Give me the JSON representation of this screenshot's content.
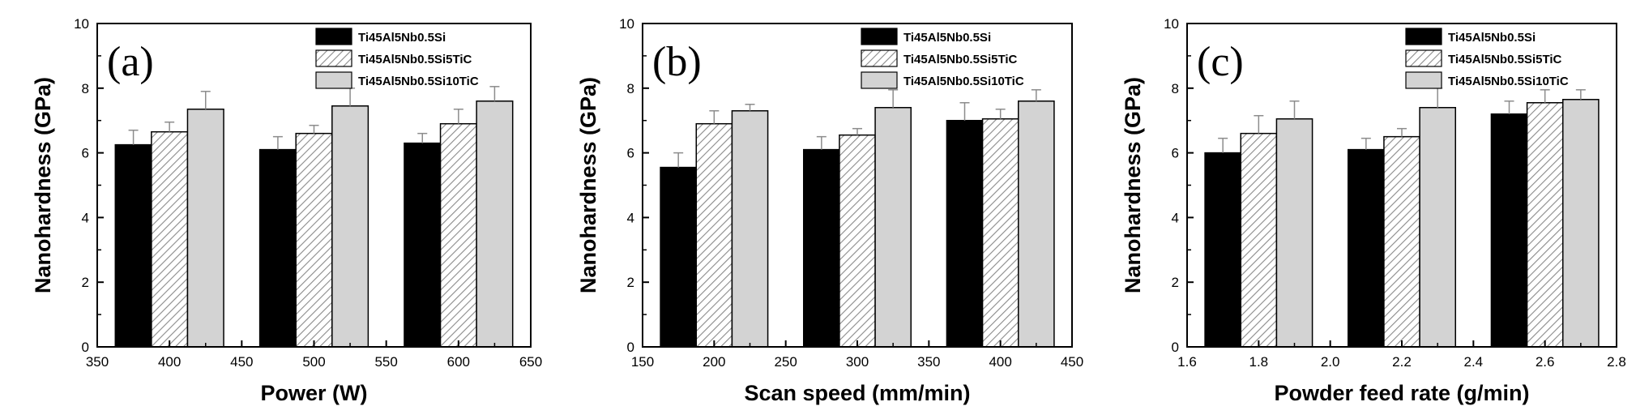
{
  "colors": {
    "axis": "#000000",
    "series_fills": [
      "#000000",
      "hatch",
      "#d3d3d3"
    ],
    "hatch_stroke": "#8a8a8a",
    "hatch_bg": "#ffffff",
    "error_bar": "#8c8c8c"
  },
  "chart_data": [
    {
      "type": "bar",
      "panel_label": "(a)",
      "xlabel": "Power (W)",
      "ylabel": "Nanohardness (GPa)",
      "xlim": [
        350,
        650
      ],
      "ylim": [
        0,
        10
      ],
      "xticks": [
        350,
        400,
        450,
        500,
        550,
        600,
        650
      ],
      "yticks": [
        0,
        2,
        4,
        6,
        8,
        10
      ],
      "xtick_labels": [
        "350",
        "400",
        "450",
        "500",
        "550",
        "600",
        "650"
      ],
      "ytick_labels": [
        "0",
        "2",
        "4",
        "6",
        "8",
        "10"
      ],
      "categories": [
        400,
        500,
        600
      ],
      "bar_width": 25,
      "legend": "top-right",
      "series": [
        {
          "name": "Ti45Al5Nb0.5Si",
          "values": [
            6.25,
            6.1,
            6.3
          ],
          "errors": [
            0.45,
            0.4,
            0.3
          ]
        },
        {
          "name": "Ti45Al5Nb0.5Si5TiC",
          "values": [
            6.65,
            6.6,
            6.9
          ],
          "errors": [
            0.3,
            0.25,
            0.45
          ]
        },
        {
          "name": "Ti45Al5Nb0.5Si10TiC",
          "values": [
            7.35,
            7.45,
            7.6
          ],
          "errors": [
            0.55,
            0.55,
            0.45
          ]
        }
      ]
    },
    {
      "type": "bar",
      "panel_label": "(b)",
      "xlabel": "Scan speed (mm/min)",
      "ylabel": "Nanohardness (GPa)",
      "xlim": [
        150,
        450
      ],
      "ylim": [
        0,
        10
      ],
      "xticks": [
        150,
        200,
        250,
        300,
        350,
        400,
        450
      ],
      "yticks": [
        0,
        2,
        4,
        6,
        8,
        10
      ],
      "xtick_labels": [
        "150",
        "200",
        "250",
        "300",
        "350",
        "400",
        "450"
      ],
      "ytick_labels": [
        "0",
        "2",
        "4",
        "6",
        "8",
        "10"
      ],
      "categories": [
        200,
        300,
        400
      ],
      "bar_width": 25,
      "legend": "top-right",
      "series": [
        {
          "name": "Ti45Al5Nb0.5Si",
          "values": [
            5.55,
            6.1,
            7.0
          ],
          "errors": [
            0.45,
            0.4,
            0.55
          ]
        },
        {
          "name": "Ti45Al5Nb0.5Si5TiC",
          "values": [
            6.9,
            6.55,
            7.05
          ],
          "errors": [
            0.4,
            0.2,
            0.3
          ]
        },
        {
          "name": "Ti45Al5Nb0.5Si10TiC",
          "values": [
            7.3,
            7.4,
            7.6
          ],
          "errors": [
            0.2,
            0.55,
            0.35
          ]
        }
      ]
    },
    {
      "type": "bar",
      "panel_label": "(c)",
      "xlabel": "Powder feed rate (g/min)",
      "ylabel": "Nanohardness (GPa)",
      "xlim": [
        1.6,
        2.8
      ],
      "ylim": [
        0,
        10
      ],
      "xticks": [
        1.6,
        1.8,
        2.0,
        2.2,
        2.4,
        2.6,
        2.8
      ],
      "yticks": [
        0,
        2,
        4,
        6,
        8,
        10
      ],
      "xtick_labels": [
        "1.6",
        "1.8",
        "2.0",
        "2.2",
        "2.4",
        "2.6",
        "2.8"
      ],
      "ytick_labels": [
        "0",
        "2",
        "4",
        "6",
        "8",
        "10"
      ],
      "categories": [
        1.8,
        2.2,
        2.6
      ],
      "bar_width": 0.1,
      "legend": "top-right",
      "series": [
        {
          "name": "Ti45Al5Nb0.5Si",
          "values": [
            6.0,
            6.1,
            7.2
          ],
          "errors": [
            0.45,
            0.35,
            0.4
          ]
        },
        {
          "name": "Ti45Al5Nb0.5Si5TiC",
          "values": [
            6.6,
            6.5,
            7.55
          ],
          "errors": [
            0.55,
            0.25,
            0.4
          ]
        },
        {
          "name": "Ti45Al5Nb0.5Si10TiC",
          "values": [
            7.05,
            7.4,
            7.65
          ],
          "errors": [
            0.55,
            0.6,
            0.3
          ]
        }
      ]
    }
  ]
}
